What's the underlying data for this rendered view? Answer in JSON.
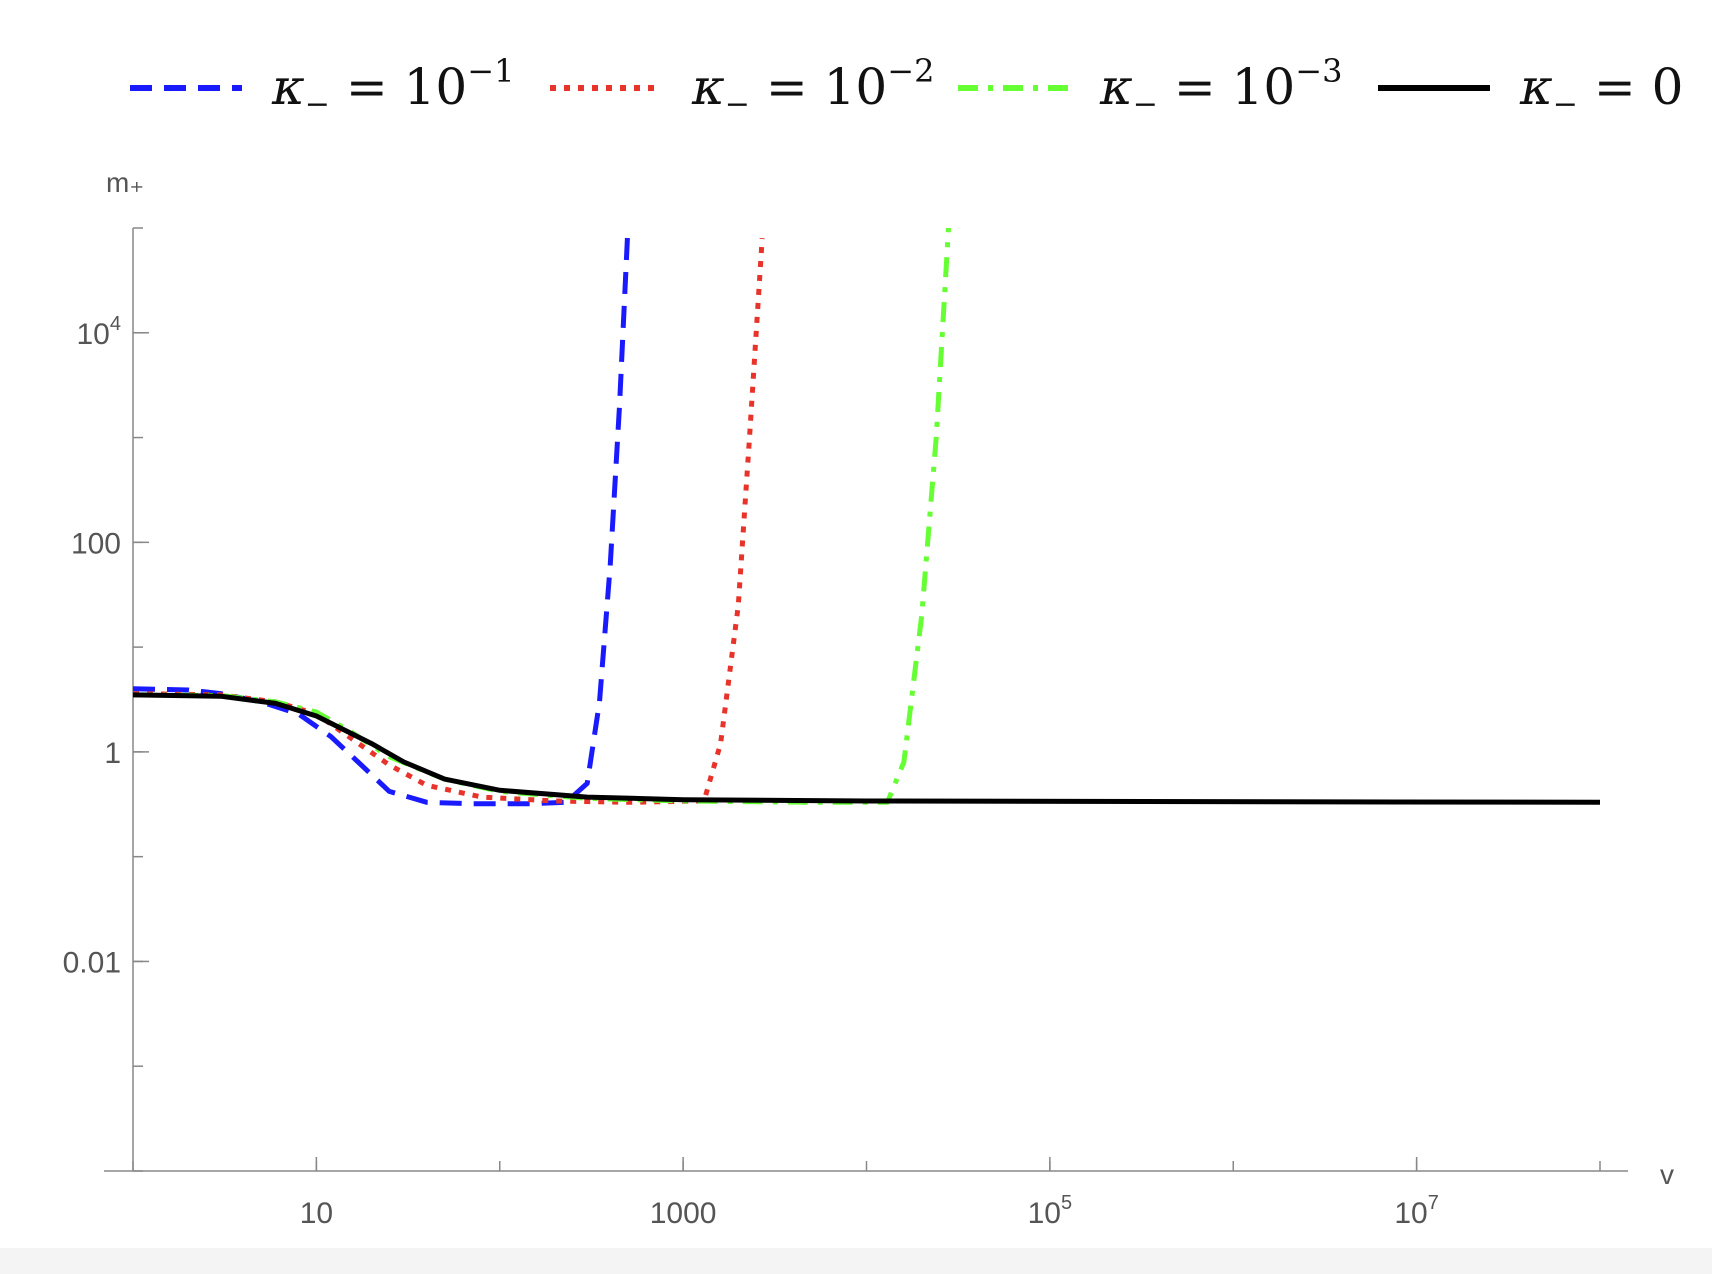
{
  "chart_data": {
    "type": "line",
    "xscale": "log",
    "yscale": "log",
    "xlabel": "v",
    "ylabel": "m₊",
    "xlim": [
      1,
      100000000
    ],
    "ylim": [
      0.0001,
      100000
    ],
    "x_ticks": [
      {
        "value": 10,
        "base": "10",
        "exp": ""
      },
      {
        "value": 1000,
        "base": "1000",
        "exp": ""
      },
      {
        "value": 100000,
        "base": "10",
        "exp": "5"
      },
      {
        "value": 10000000,
        "base": "10",
        "exp": "7"
      }
    ],
    "y_ticks": [
      {
        "value": 0.01,
        "base": "0.01",
        "exp": ""
      },
      {
        "value": 1,
        "base": "1",
        "exp": ""
      },
      {
        "value": 100,
        "base": "100",
        "exp": ""
      },
      {
        "value": 10000,
        "base": "10",
        "exp": "4"
      }
    ],
    "legend_position": "top",
    "series": [
      {
        "name": "κ₋ = 10⁻¹",
        "legend": {
          "sym": "κ",
          "sub": "−",
          "rhs": "10",
          "sup": "−1"
        },
        "color": "#1a1aff",
        "dash": "dashed",
        "points": [
          [
            1,
            4.0
          ],
          [
            2,
            3.9
          ],
          [
            3,
            3.6
          ],
          [
            5,
            3.0
          ],
          [
            8,
            2.3
          ],
          [
            12,
            1.4
          ],
          [
            18,
            0.72
          ],
          [
            25,
            0.42
          ],
          [
            40,
            0.33
          ],
          [
            70,
            0.32
          ],
          [
            150,
            0.32
          ],
          [
            230,
            0.33
          ],
          [
            300,
            0.5
          ],
          [
            350,
            3
          ],
          [
            400,
            60
          ],
          [
            450,
            2000
          ],
          [
            500,
            100000
          ]
        ]
      },
      {
        "name": "κ₋ = 10⁻²",
        "legend": {
          "sym": "κ",
          "sub": "−",
          "rhs": "10",
          "sup": "−2"
        },
        "color": "#e8332a",
        "dash": "dotted",
        "points": [
          [
            1,
            3.6
          ],
          [
            3,
            3.5
          ],
          [
            6,
            3.0
          ],
          [
            10,
            2.3
          ],
          [
            15,
            1.4
          ],
          [
            25,
            0.75
          ],
          [
            40,
            0.48
          ],
          [
            80,
            0.37
          ],
          [
            200,
            0.34
          ],
          [
            500,
            0.33
          ],
          [
            1300,
            0.34
          ],
          [
            1600,
            1.2
          ],
          [
            2000,
            25
          ],
          [
            2300,
            1000
          ],
          [
            2700,
            80000
          ]
        ]
      },
      {
        "name": "κ₋ = 10⁻³",
        "legend": {
          "sym": "κ",
          "sub": "−",
          "rhs": "10",
          "sup": "−3"
        },
        "color": "#66ff33",
        "dash": "dashdot",
        "points": [
          [
            1,
            3.5
          ],
          [
            3,
            3.45
          ],
          [
            6,
            3.0
          ],
          [
            10,
            2.4
          ],
          [
            15,
            1.6
          ],
          [
            25,
            0.9
          ],
          [
            50,
            0.55
          ],
          [
            100,
            0.42
          ],
          [
            300,
            0.36
          ],
          [
            1000,
            0.34
          ],
          [
            5000,
            0.33
          ],
          [
            13000,
            0.33
          ],
          [
            16000,
            0.8
          ],
          [
            20000,
            20
          ],
          [
            24000,
            1000
          ],
          [
            28000,
            100000
          ]
        ]
      },
      {
        "name": "κ₋ = 0",
        "legend": {
          "sym": "κ",
          "sub": "−",
          "rhs": "0",
          "sup": ""
        },
        "color": "#000000",
        "dash": "solid",
        "points": [
          [
            1,
            3.5
          ],
          [
            3,
            3.4
          ],
          [
            6,
            2.9
          ],
          [
            10,
            2.2
          ],
          [
            20,
            1.2
          ],
          [
            30,
            0.8
          ],
          [
            50,
            0.55
          ],
          [
            100,
            0.43
          ],
          [
            300,
            0.37
          ],
          [
            1000,
            0.35
          ],
          [
            10000,
            0.34
          ],
          [
            100000000,
            0.33
          ]
        ]
      }
    ]
  }
}
